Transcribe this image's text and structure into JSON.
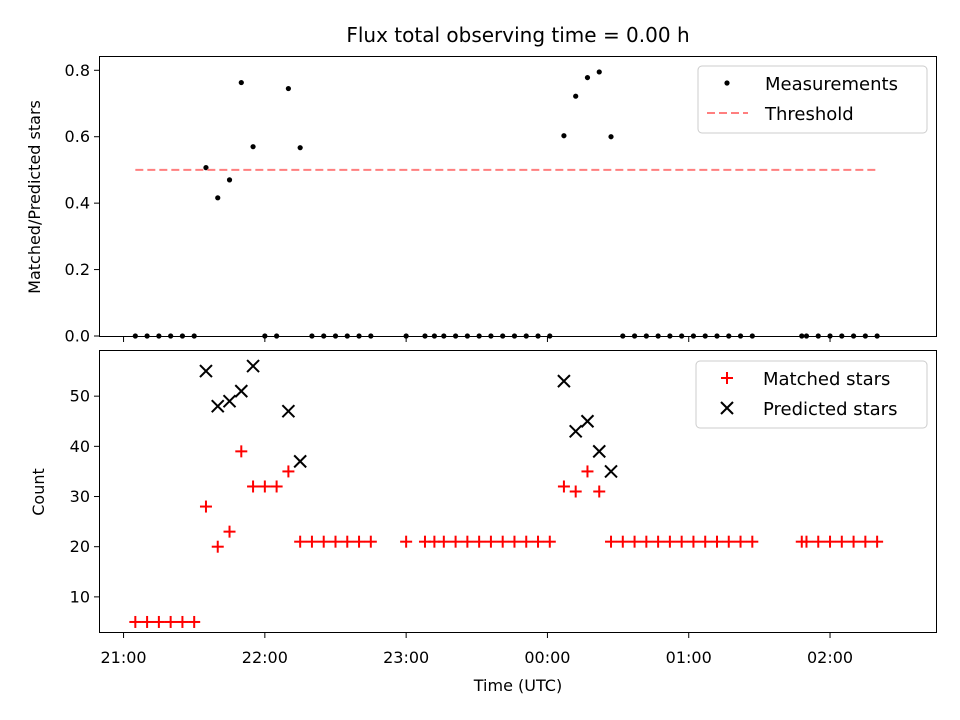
{
  "chart_data": [
    {
      "type": "scatter",
      "title": "Flux total observing time = 0.00 h",
      "xlabel": "",
      "ylabel": "Matched/Predicted stars",
      "xlim": [
        "20:50",
        "02:45"
      ],
      "ylim": [
        0,
        0.84
      ],
      "yticks": [
        0.0,
        0.2,
        0.4,
        0.6,
        0.8
      ],
      "ytick_labels": [
        "0.0",
        "0.2",
        "0.4",
        "0.6",
        "0.8"
      ],
      "grid": false,
      "legend_position": "top-right",
      "series": [
        {
          "name": "Measurements",
          "marker": "dot",
          "color": "#000000",
          "points": [
            [
              "21:05",
              0
            ],
            [
              "21:10",
              0
            ],
            [
              "21:15",
              0
            ],
            [
              "21:20",
              0
            ],
            [
              "21:25",
              0
            ],
            [
              "21:30",
              0
            ],
            [
              "21:35",
              0.507
            ],
            [
              "21:40",
              0.416
            ],
            [
              "21:45",
              0.47
            ],
            [
              "21:50",
              0.763
            ],
            [
              "21:55",
              0.57
            ],
            [
              "22:00",
              0
            ],
            [
              "22:05",
              0
            ],
            [
              "22:10",
              0.745
            ],
            [
              "22:15",
              0.567
            ],
            [
              "22:20",
              0
            ],
            [
              "22:25",
              0
            ],
            [
              "22:30",
              0
            ],
            [
              "22:35",
              0
            ],
            [
              "22:40",
              0
            ],
            [
              "22:45",
              0
            ],
            [
              "23:00",
              0
            ],
            [
              "23:08",
              0
            ],
            [
              "23:12",
              0
            ],
            [
              "23:16",
              0
            ],
            [
              "23:21",
              0
            ],
            [
              "23:26",
              0
            ],
            [
              "23:31",
              0
            ],
            [
              "23:36",
              0
            ],
            [
              "23:41",
              0
            ],
            [
              "23:46",
              0
            ],
            [
              "23:51",
              0
            ],
            [
              "23:56",
              0
            ],
            [
              "00:01",
              0
            ],
            [
              "00:07",
              0.603
            ],
            [
              "00:12",
              0.722
            ],
            [
              "00:17",
              0.778
            ],
            [
              "00:22",
              0.795
            ],
            [
              "00:27",
              0.6
            ],
            [
              "00:32",
              0
            ],
            [
              "00:37",
              0
            ],
            [
              "00:42",
              0
            ],
            [
              "00:47",
              0
            ],
            [
              "00:52",
              0
            ],
            [
              "00:57",
              0
            ],
            [
              "01:02",
              0
            ],
            [
              "01:07",
              0
            ],
            [
              "01:12",
              0
            ],
            [
              "01:17",
              0
            ],
            [
              "01:22",
              0
            ],
            [
              "01:27",
              0
            ],
            [
              "01:48",
              0
            ],
            [
              "01:50",
              0
            ],
            [
              "01:55",
              0
            ],
            [
              "02:00",
              0
            ],
            [
              "02:05",
              0
            ],
            [
              "02:10",
              0
            ],
            [
              "02:15",
              0
            ],
            [
              "02:20",
              0
            ]
          ]
        },
        {
          "name": "Threshold",
          "type": "line",
          "style": "dashed",
          "color": "#ff7f7f",
          "points": [
            [
              "21:05",
              0.5
            ],
            [
              "02:20",
              0.5
            ]
          ]
        }
      ]
    },
    {
      "type": "scatter",
      "title": "",
      "xlabel": "Time (UTC)",
      "ylabel": "Count",
      "xlim": [
        "20:50",
        "02:45"
      ],
      "ylim": [
        3,
        59
      ],
      "yticks": [
        10,
        20,
        30,
        40,
        50
      ],
      "ytick_labels": [
        "10",
        "20",
        "30",
        "40",
        "50"
      ],
      "xticks": [
        "21:00",
        "22:00",
        "23:00",
        "00:00",
        "01:00",
        "02:00"
      ],
      "xtick_labels": [
        "21:00",
        "22:00",
        "23:00",
        "00:00",
        "01:00",
        "02:00"
      ],
      "grid": false,
      "legend_position": "top-right",
      "series": [
        {
          "name": "Matched stars",
          "marker": "plus",
          "color": "#ff0000",
          "points": [
            [
              "21:05",
              5
            ],
            [
              "21:10",
              5
            ],
            [
              "21:15",
              5
            ],
            [
              "21:20",
              5
            ],
            [
              "21:25",
              5
            ],
            [
              "21:30",
              5
            ],
            [
              "21:35",
              28
            ],
            [
              "21:40",
              20
            ],
            [
              "21:45",
              23
            ],
            [
              "21:50",
              39
            ],
            [
              "21:55",
              32
            ],
            [
              "22:00",
              32
            ],
            [
              "22:05",
              32
            ],
            [
              "22:10",
              35
            ],
            [
              "22:15",
              21
            ],
            [
              "22:20",
              21
            ],
            [
              "22:25",
              21
            ],
            [
              "22:30",
              21
            ],
            [
              "22:35",
              21
            ],
            [
              "22:40",
              21
            ],
            [
              "22:45",
              21
            ],
            [
              "23:00",
              21
            ],
            [
              "23:08",
              21
            ],
            [
              "23:12",
              21
            ],
            [
              "23:16",
              21
            ],
            [
              "23:21",
              21
            ],
            [
              "23:26",
              21
            ],
            [
              "23:31",
              21
            ],
            [
              "23:36",
              21
            ],
            [
              "23:41",
              21
            ],
            [
              "23:46",
              21
            ],
            [
              "23:51",
              21
            ],
            [
              "23:56",
              21
            ],
            [
              "00:01",
              21
            ],
            [
              "00:07",
              32
            ],
            [
              "00:12",
              31
            ],
            [
              "00:17",
              35
            ],
            [
              "00:22",
              31
            ],
            [
              "00:27",
              21
            ],
            [
              "00:32",
              21
            ],
            [
              "00:37",
              21
            ],
            [
              "00:42",
              21
            ],
            [
              "00:47",
              21
            ],
            [
              "00:52",
              21
            ],
            [
              "00:57",
              21
            ],
            [
              "01:02",
              21
            ],
            [
              "01:07",
              21
            ],
            [
              "01:12",
              21
            ],
            [
              "01:17",
              21
            ],
            [
              "01:22",
              21
            ],
            [
              "01:27",
              21
            ],
            [
              "01:48",
              21
            ],
            [
              "01:50",
              21
            ],
            [
              "01:55",
              21
            ],
            [
              "02:00",
              21
            ],
            [
              "02:05",
              21
            ],
            [
              "02:10",
              21
            ],
            [
              "02:15",
              21
            ],
            [
              "02:20",
              21
            ]
          ]
        },
        {
          "name": "Predicted stars",
          "marker": "x",
          "color": "#000000",
          "points": [
            [
              "21:35",
              55
            ],
            [
              "21:40",
              48
            ],
            [
              "21:45",
              49
            ],
            [
              "21:50",
              51
            ],
            [
              "21:55",
              56
            ],
            [
              "22:10",
              47
            ],
            [
              "22:15",
              37
            ],
            [
              "00:07",
              53
            ],
            [
              "00:12",
              43
            ],
            [
              "00:17",
              45
            ],
            [
              "00:22",
              39
            ],
            [
              "00:27",
              35
            ]
          ]
        }
      ]
    }
  ]
}
